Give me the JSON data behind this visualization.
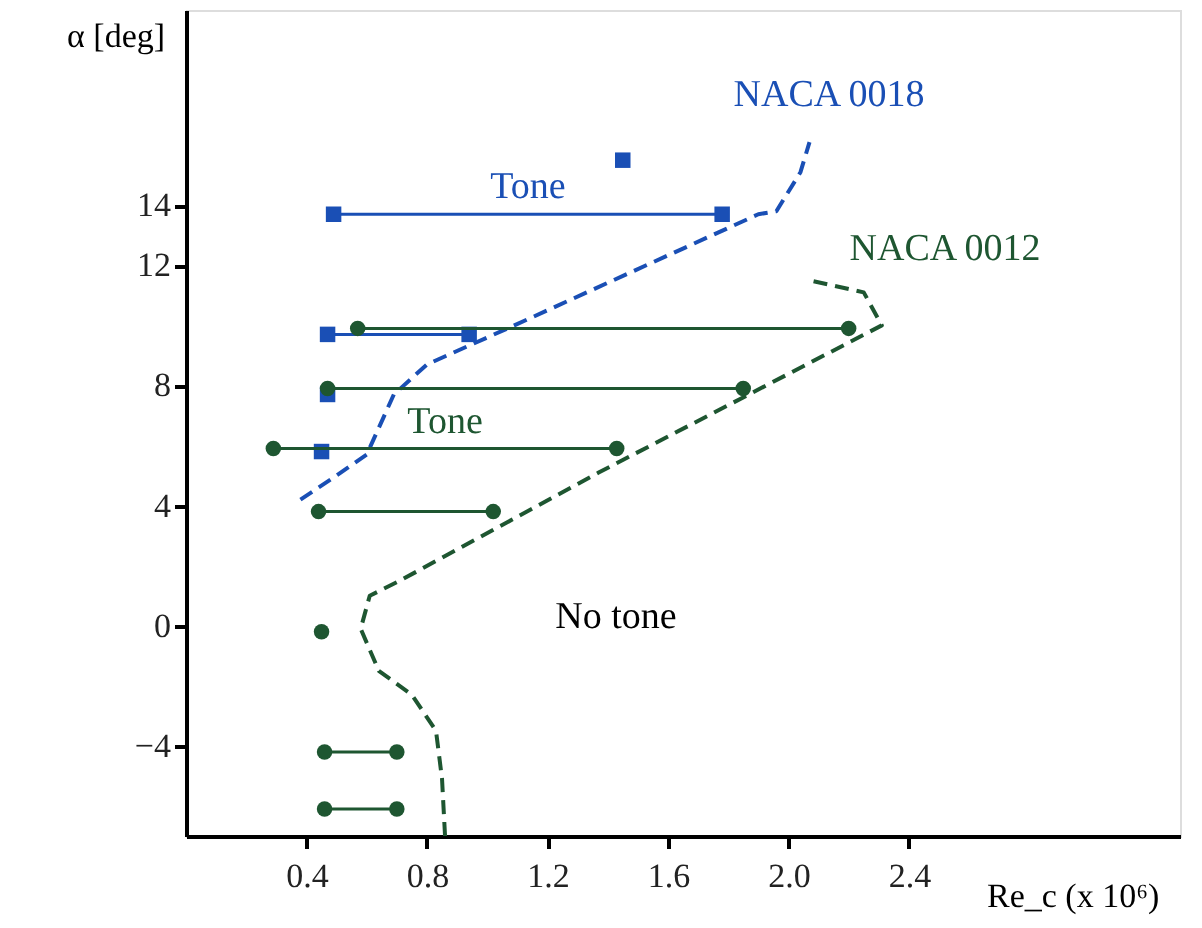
{
  "chart_data": {
    "type": "line",
    "xlabel": "Re_c (x 10⁶)",
    "ylabel": "α [deg]",
    "xlim": [
      0,
      3.3
    ],
    "ylim": [
      -7,
      20.5
    ],
    "xticks": [
      0.4,
      0.8,
      1.2,
      1.6,
      {
        "value": 2.0,
        "label": "2.0"
      },
      2.4
    ],
    "yticks": [
      14,
      12,
      8,
      4,
      0,
      -4
    ],
    "grid": false,
    "series": [
      {
        "name": "NACA 0018",
        "line_style": "dashed",
        "marker": "none",
        "color": "#1a4fb5",
        "x": [
          0.38,
          0.5,
          0.6,
          0.69,
          0.8,
          1.09,
          1.9,
          1.96,
          2.04,
          2.07
        ],
        "values": [
          4.2,
          5.0,
          5.7,
          7.7,
          8.7,
          10.0,
          13.7,
          13.8,
          15.1,
          16.1
        ]
      },
      {
        "name": "NACA 0012",
        "line_style": "dashed",
        "marker": "none",
        "color": "#1e5631",
        "x": [
          0.86,
          0.85,
          0.83,
          0.75,
          0.64,
          0.58,
          0.61,
          0.71,
          1.37,
          2.31,
          2.25,
          2.07
        ],
        "values": [
          -7.0,
          -5.1,
          -3.5,
          -2.3,
          -1.5,
          -0.1,
          1.0,
          1.5,
          5.1,
          10.0,
          11.1,
          11.5
        ]
      },
      {
        "name": "Tone",
        "type": "line",
        "line_style": "solid",
        "marker": "square",
        "color": "#1a4fb5",
        "x": [
          0.49,
          1.78
        ],
        "values": [
          13.7,
          13.7
        ]
      },
      {
        "type": "scatter",
        "marker": "square",
        "color": "#1a4fb5",
        "x": [
          1.45
        ],
        "values": [
          15.5
        ]
      },
      {
        "type": "line",
        "line_style": "solid",
        "marker": "square",
        "color": "#1a4fb5",
        "x": [
          0.47,
          0.94
        ],
        "values": [
          9.7,
          9.7
        ]
      },
      {
        "type": "scatter",
        "marker": "square",
        "color": "#1a4fb5",
        "x": [
          0.47,
          0.45
        ],
        "values": [
          7.7,
          5.8
        ]
      },
      {
        "type": "line",
        "line_style": "solid",
        "marker": "circle",
        "color": "#1e5631",
        "x": [
          0.57,
          2.2
        ],
        "values": [
          9.9,
          9.9
        ]
      },
      {
        "type": "line",
        "line_style": "solid",
        "marker": "circle",
        "color": "#1e5631",
        "x": [
          0.47,
          1.85
        ],
        "values": [
          7.9,
          7.9
        ]
      },
      {
        "name": "Tone",
        "type": "line",
        "line_style": "solid",
        "marker": "circle",
        "color": "#1e5631",
        "x": [
          0.29,
          1.43
        ],
        "values": [
          5.9,
          5.9
        ]
      },
      {
        "type": "line",
        "line_style": "solid",
        "marker": "circle",
        "color": "#1e5631",
        "x": [
          0.44,
          1.02
        ],
        "values": [
          3.8,
          3.8
        ]
      },
      {
        "type": "scatter",
        "marker": "circle",
        "color": "#1e5631",
        "x": [
          0.45
        ],
        "values": [
          -0.2
        ]
      },
      {
        "type": "line",
        "line_style": "solid",
        "marker": "circle",
        "color": "#1e5631",
        "x": [
          0.46,
          0.7
        ],
        "values": [
          -4.2,
          -4.2
        ]
      },
      {
        "type": "line",
        "line_style": "solid",
        "marker": "circle",
        "color": "#1e5631",
        "x": [
          0.46,
          0.7
        ],
        "values": [
          -6.1,
          -6.1
        ]
      }
    ],
    "annotations": [
      "No tone"
    ]
  }
}
